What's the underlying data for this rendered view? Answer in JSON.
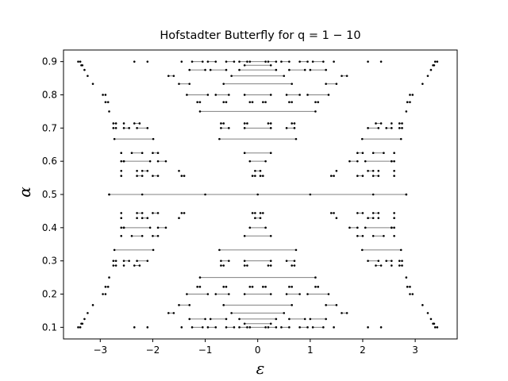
{
  "chart_data": {
    "type": "scatter",
    "title": "Hofstadter Butterfly for q = 1 − 10",
    "xlabel": "ε",
    "ylabel": "α",
    "xlim": [
      -3.7,
      3.8
    ],
    "ylim": [
      0.065,
      0.935
    ],
    "xticks": [
      -3,
      -2,
      -1,
      0,
      1,
      2,
      3
    ],
    "xtick_labels": [
      "−3",
      "−2",
      "−1",
      "0",
      "1",
      "2",
      "3"
    ],
    "yticks": [
      0.1,
      0.2,
      0.3,
      0.4,
      0.5,
      0.6,
      0.7,
      0.8,
      0.9
    ],
    "ytick_labels": [
      "0.1",
      "0.2",
      "0.3",
      "0.4",
      "0.5",
      "0.6",
      "0.7",
      "0.8",
      "0.9"
    ],
    "grid": false,
    "marker_color": "#000000",
    "band_color": "#808080",
    "series": [
      {
        "alpha": 0.1,
        "bands": [
          [
            -3.42,
            -3.42
          ],
          [
            -3.38,
            -3.38
          ],
          [
            -2.35,
            -2.35
          ],
          [
            -2.1,
            -2.1
          ],
          [
            -1.45,
            -1.45
          ],
          [
            -1.25,
            -1.05
          ],
          [
            -0.95,
            -0.8
          ],
          [
            -0.6,
            -0.45
          ],
          [
            -0.35,
            -0.2
          ],
          [
            -0.15,
            0.15
          ],
          [
            0.2,
            0.35
          ],
          [
            0.45,
            0.6
          ],
          [
            0.8,
            0.95
          ],
          [
            1.05,
            1.25
          ],
          [
            1.45,
            1.45
          ],
          [
            2.1,
            2.1
          ],
          [
            2.35,
            2.35
          ],
          [
            3.38,
            3.38
          ],
          [
            3.42,
            3.42
          ]
        ]
      },
      {
        "alpha": 0.111,
        "bands": [
          [
            -3.36,
            -3.36
          ],
          [
            -3.34,
            -3.34
          ],
          [
            -0.25,
            0.25
          ],
          [
            3.34,
            3.34
          ],
          [
            3.36,
            3.36
          ]
        ]
      },
      {
        "alpha": 0.125,
        "bands": [
          [
            -3.3,
            -3.3
          ],
          [
            -1.3,
            -1.0
          ],
          [
            -0.9,
            -0.6
          ],
          [
            -0.35,
            0.35
          ],
          [
            0.6,
            0.9
          ],
          [
            1.0,
            1.3
          ],
          [
            3.3,
            3.3
          ]
        ]
      },
      {
        "alpha": 0.143,
        "bands": [
          [
            -3.24,
            -3.24
          ],
          [
            -1.7,
            -1.6
          ],
          [
            -0.5,
            0.5
          ],
          [
            1.6,
            1.7
          ],
          [
            3.24,
            3.24
          ]
        ]
      },
      {
        "alpha": 0.167,
        "bands": [
          [
            -3.14,
            -3.14
          ],
          [
            -1.5,
            -1.3
          ],
          [
            -0.65,
            0.65
          ],
          [
            1.3,
            1.5
          ],
          [
            3.14,
            3.14
          ]
        ]
      },
      {
        "alpha": 0.2,
        "bands": [
          [
            -2.95,
            -2.95
          ],
          [
            -2.9,
            -2.9
          ],
          [
            -1.35,
            -0.95
          ],
          [
            -0.8,
            -0.55
          ],
          [
            -0.25,
            0.25
          ],
          [
            0.55,
            0.8
          ],
          [
            0.95,
            1.35
          ],
          [
            2.9,
            2.9
          ],
          [
            2.95,
            2.95
          ]
        ]
      },
      {
        "alpha": 0.222,
        "bands": [
          [
            -2.9,
            -2.85
          ],
          [
            -1.15,
            -1.1
          ],
          [
            -0.65,
            -0.6
          ],
          [
            -0.15,
            -0.1
          ],
          [
            0.1,
            0.15
          ],
          [
            0.6,
            0.65
          ],
          [
            1.1,
            1.15
          ],
          [
            2.85,
            2.9
          ]
        ]
      },
      {
        "alpha": 0.25,
        "bands": [
          [
            -2.83,
            -2.83
          ],
          [
            -1.1,
            1.1
          ],
          [
            2.83,
            2.83
          ]
        ]
      },
      {
        "alpha": 0.286,
        "bands": [
          [
            -2.75,
            -2.7
          ],
          [
            -2.55,
            -2.55
          ],
          [
            -2.35,
            -2.25
          ],
          [
            -0.7,
            -0.65
          ],
          [
            -0.25,
            -0.2
          ],
          [
            0.2,
            0.25
          ],
          [
            0.65,
            0.7
          ],
          [
            2.25,
            2.35
          ],
          [
            2.55,
            2.55
          ],
          [
            2.7,
            2.75
          ]
        ]
      },
      {
        "alpha": 0.3,
        "bands": [
          [
            -2.75,
            -2.7
          ],
          [
            -2.55,
            -2.45
          ],
          [
            -2.3,
            -2.1
          ],
          [
            -0.7,
            -0.55
          ],
          [
            -0.25,
            0.25
          ],
          [
            0.55,
            0.7
          ],
          [
            2.1,
            2.3
          ],
          [
            2.45,
            2.55
          ],
          [
            2.7,
            2.75
          ]
        ]
      },
      {
        "alpha": 0.333,
        "bands": [
          [
            -2.73,
            -1.99
          ],
          [
            -0.73,
            0.73
          ],
          [
            1.99,
            2.73
          ]
        ]
      },
      {
        "alpha": 0.375,
        "bands": [
          [
            -2.6,
            -2.6
          ],
          [
            -2.4,
            -2.2
          ],
          [
            -2.0,
            -1.9
          ],
          [
            -0.25,
            0.25
          ],
          [
            1.9,
            2.0
          ],
          [
            2.2,
            2.4
          ],
          [
            2.6,
            2.6
          ]
        ]
      },
      {
        "alpha": 0.4,
        "bands": [
          [
            -2.6,
            -2.55
          ],
          [
            -2.55,
            -2.05
          ],
          [
            -1.9,
            -1.75
          ],
          [
            -0.15,
            0.15
          ],
          [
            1.75,
            1.9
          ],
          [
            2.05,
            2.55
          ],
          [
            2.55,
            2.6
          ]
        ]
      },
      {
        "alpha": 0.429,
        "bands": [
          [
            -2.6,
            -2.6
          ],
          [
            -2.3,
            -2.3
          ],
          [
            -2.2,
            -2.1
          ],
          [
            -1.5,
            -1.5
          ],
          [
            -0.05,
            0.05
          ],
          [
            1.5,
            1.5
          ],
          [
            2.1,
            2.2
          ],
          [
            2.3,
            2.3
          ],
          [
            2.6,
            2.6
          ]
        ]
      },
      {
        "alpha": 0.444,
        "bands": [
          [
            -2.6,
            -2.6
          ],
          [
            -2.3,
            -2.2
          ],
          [
            -2.0,
            -1.9
          ],
          [
            -1.45,
            -1.4
          ],
          [
            -0.1,
            -0.05
          ],
          [
            0.05,
            0.1
          ],
          [
            1.4,
            1.45
          ],
          [
            1.9,
            2.0
          ],
          [
            2.2,
            2.3
          ],
          [
            2.6,
            2.6
          ]
        ]
      },
      {
        "alpha": 0.5,
        "bands": [
          [
            -2.83,
            -2.83
          ],
          [
            -2.2,
            -2.2
          ],
          [
            -1.0,
            -1.0
          ],
          [
            0.0,
            0.0
          ],
          [
            1.0,
            1.0
          ],
          [
            2.2,
            2.2
          ],
          [
            2.83,
            2.83
          ],
          [
            -2.83,
            2.83
          ]
        ]
      },
      {
        "alpha": 0.556,
        "bands": [
          [
            -2.6,
            -2.6
          ],
          [
            -2.3,
            -2.2
          ],
          [
            -2.0,
            -1.9
          ],
          [
            -1.45,
            -1.4
          ],
          [
            -0.1,
            -0.05
          ],
          [
            0.05,
            0.1
          ],
          [
            1.4,
            1.45
          ],
          [
            1.9,
            2.0
          ],
          [
            2.2,
            2.3
          ],
          [
            2.6,
            2.6
          ]
        ]
      },
      {
        "alpha": 0.571,
        "bands": [
          [
            -2.6,
            -2.6
          ],
          [
            -2.3,
            -2.3
          ],
          [
            -2.2,
            -2.1
          ],
          [
            -1.5,
            -1.5
          ],
          [
            -0.05,
            0.05
          ],
          [
            1.5,
            1.5
          ],
          [
            2.1,
            2.2
          ],
          [
            2.3,
            2.3
          ],
          [
            2.6,
            2.6
          ]
        ]
      },
      {
        "alpha": 0.6,
        "bands": [
          [
            -2.6,
            -2.55
          ],
          [
            -2.55,
            -2.05
          ],
          [
            -1.9,
            -1.75
          ],
          [
            -0.15,
            0.15
          ],
          [
            1.75,
            1.9
          ],
          [
            2.05,
            2.55
          ],
          [
            2.55,
            2.6
          ]
        ]
      },
      {
        "alpha": 0.625,
        "bands": [
          [
            -2.6,
            -2.6
          ],
          [
            -2.4,
            -2.2
          ],
          [
            -2.0,
            -1.9
          ],
          [
            -0.25,
            0.25
          ],
          [
            1.9,
            2.0
          ],
          [
            2.2,
            2.4
          ],
          [
            2.6,
            2.6
          ]
        ]
      },
      {
        "alpha": 0.667,
        "bands": [
          [
            -2.73,
            -1.99
          ],
          [
            -0.73,
            0.73
          ],
          [
            1.99,
            2.73
          ]
        ]
      },
      {
        "alpha": 0.7,
        "bands": [
          [
            -2.75,
            -2.7
          ],
          [
            -2.55,
            -2.45
          ],
          [
            -2.3,
            -2.1
          ],
          [
            -0.7,
            -0.55
          ],
          [
            -0.25,
            0.25
          ],
          [
            0.55,
            0.7
          ],
          [
            2.1,
            2.3
          ],
          [
            2.45,
            2.55
          ],
          [
            2.7,
            2.75
          ]
        ]
      },
      {
        "alpha": 0.714,
        "bands": [
          [
            -2.75,
            -2.7
          ],
          [
            -2.55,
            -2.55
          ],
          [
            -2.35,
            -2.25
          ],
          [
            -0.7,
            -0.65
          ],
          [
            -0.25,
            -0.2
          ],
          [
            0.2,
            0.25
          ],
          [
            0.65,
            0.7
          ],
          [
            2.25,
            2.35
          ],
          [
            2.55,
            2.55
          ],
          [
            2.7,
            2.75
          ]
        ]
      },
      {
        "alpha": 0.75,
        "bands": [
          [
            -2.83,
            -2.83
          ],
          [
            -1.1,
            1.1
          ],
          [
            2.83,
            2.83
          ]
        ]
      },
      {
        "alpha": 0.778,
        "bands": [
          [
            -2.9,
            -2.85
          ],
          [
            -1.15,
            -1.1
          ],
          [
            -0.65,
            -0.6
          ],
          [
            -0.15,
            -0.1
          ],
          [
            0.1,
            0.15
          ],
          [
            0.6,
            0.65
          ],
          [
            1.1,
            1.15
          ],
          [
            2.85,
            2.9
          ]
        ]
      },
      {
        "alpha": 0.8,
        "bands": [
          [
            -2.95,
            -2.95
          ],
          [
            -2.9,
            -2.9
          ],
          [
            -1.35,
            -0.95
          ],
          [
            -0.8,
            -0.55
          ],
          [
            -0.25,
            0.25
          ],
          [
            0.55,
            0.8
          ],
          [
            0.95,
            1.35
          ],
          [
            2.9,
            2.9
          ],
          [
            2.95,
            2.95
          ]
        ]
      },
      {
        "alpha": 0.833,
        "bands": [
          [
            -3.14,
            -3.14
          ],
          [
            -1.5,
            -1.3
          ],
          [
            -0.65,
            0.65
          ],
          [
            1.3,
            1.5
          ],
          [
            3.14,
            3.14
          ]
        ]
      },
      {
        "alpha": 0.857,
        "bands": [
          [
            -3.24,
            -3.24
          ],
          [
            -1.7,
            -1.6
          ],
          [
            -0.5,
            0.5
          ],
          [
            1.6,
            1.7
          ],
          [
            3.24,
            3.24
          ]
        ]
      },
      {
        "alpha": 0.875,
        "bands": [
          [
            -3.3,
            -3.3
          ],
          [
            -1.3,
            -1.0
          ],
          [
            -0.9,
            -0.6
          ],
          [
            -0.35,
            0.35
          ],
          [
            0.6,
            0.9
          ],
          [
            1.0,
            1.3
          ],
          [
            3.3,
            3.3
          ]
        ]
      },
      {
        "alpha": 0.889,
        "bands": [
          [
            -3.36,
            -3.36
          ],
          [
            -3.34,
            -3.34
          ],
          [
            -0.25,
            0.25
          ],
          [
            3.34,
            3.34
          ],
          [
            3.36,
            3.36
          ]
        ]
      },
      {
        "alpha": 0.9,
        "bands": [
          [
            -3.42,
            -3.42
          ],
          [
            -3.38,
            -3.38
          ],
          [
            -2.35,
            -2.35
          ],
          [
            -2.1,
            -2.1
          ],
          [
            -1.45,
            -1.45
          ],
          [
            -1.25,
            -1.05
          ],
          [
            -0.95,
            -0.8
          ],
          [
            -0.6,
            -0.45
          ],
          [
            -0.35,
            -0.2
          ],
          [
            -0.15,
            0.15
          ],
          [
            0.2,
            0.35
          ],
          [
            0.45,
            0.6
          ],
          [
            0.8,
            0.95
          ],
          [
            1.05,
            1.25
          ],
          [
            1.45,
            1.45
          ],
          [
            2.1,
            2.1
          ],
          [
            2.35,
            2.35
          ],
          [
            3.38,
            3.38
          ],
          [
            3.42,
            3.42
          ]
        ]
      }
    ]
  }
}
